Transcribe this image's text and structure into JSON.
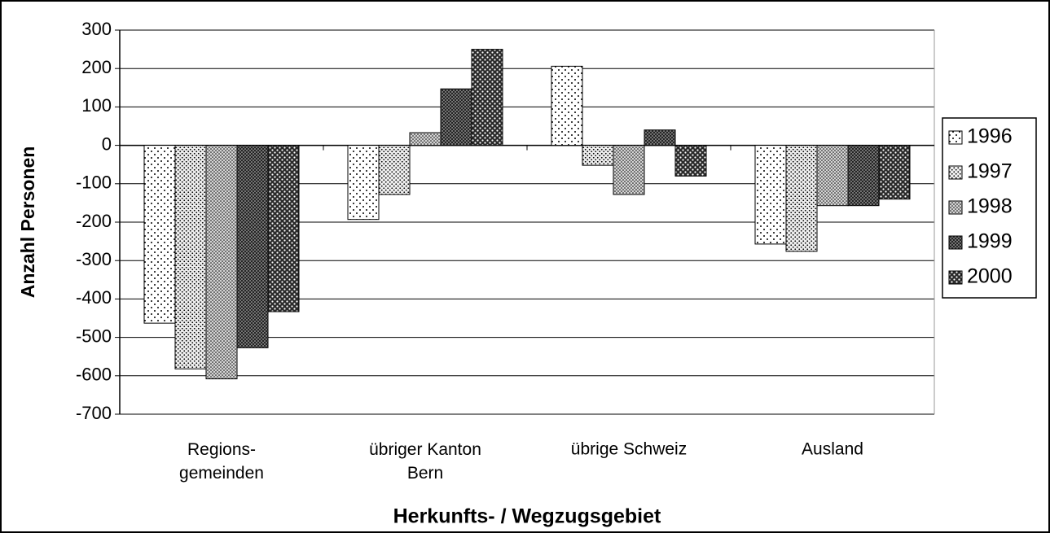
{
  "chart_data": {
    "type": "bar",
    "x_label": "Herkunfts- / Wegzugsgebiet",
    "y_label": "Anzahl Personen",
    "categories": [
      "Regions-\ngemeinden",
      "übriger Kanton\nBern",
      "übrige Schweiz",
      "Ausland"
    ],
    "series": [
      {
        "name": "1996",
        "color": "#ffffff",
        "values": [
          -463,
          -193,
          206,
          -257
        ]
      },
      {
        "name": "1997",
        "color": "#eeeeee",
        "values": [
          -582,
          -128,
          -52,
          -276
        ]
      },
      {
        "name": "1998",
        "color": "#d4d4d4",
        "values": [
          -608,
          33,
          -128,
          -157
        ]
      },
      {
        "name": "1999",
        "color": "#7a7a7a",
        "values": [
          -527,
          147,
          40,
          -157
        ]
      },
      {
        "name": "2000",
        "color": "#2a2a2a",
        "values": [
          -433,
          250,
          -80,
          -140
        ]
      }
    ],
    "ylim": [
      -700,
      300
    ],
    "yticks": [
      -700,
      -600,
      -500,
      -400,
      -300,
      -200,
      -100,
      0,
      100,
      200,
      300
    ],
    "grid": true,
    "legend": "right"
  }
}
